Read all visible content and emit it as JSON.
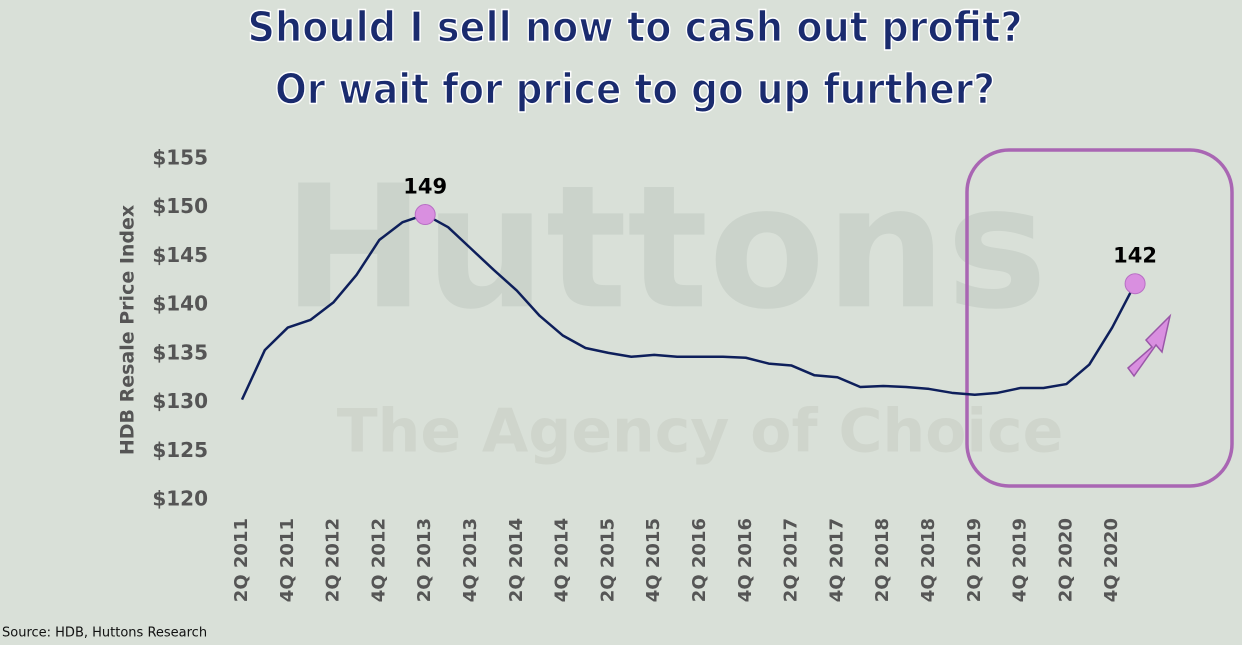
{
  "chart_data": {
    "type": "line",
    "title": "Should I sell now to cash out profit?",
    "subtitle": "Or wait for price to go up further?",
    "y_label": "HDB Resale Price Index",
    "source": "Source: HDB, Huttons Research",
    "watermark": [
      "Huttons",
      "The Agency of Choice"
    ],
    "categories": [
      "2Q 2011",
      null,
      "4Q 2011",
      null,
      "2Q 2012",
      null,
      "4Q 2012",
      null,
      "2Q 2013",
      null,
      "4Q 2013",
      null,
      "2Q 2014",
      null,
      "4Q 2014",
      null,
      "2Q 2015",
      null,
      "4Q 2015",
      null,
      "2Q 2016",
      null,
      "4Q 2016",
      null,
      "2Q 2017",
      null,
      "4Q 2017",
      null,
      "2Q 2018",
      null,
      "4Q 2018",
      null,
      "2Q 2019",
      null,
      "4Q 2019",
      null,
      "2Q 2020",
      null,
      "4Q 2020",
      null
    ],
    "values": [
      130.3,
      135.4,
      137.7,
      138.5,
      140.3,
      143.1,
      146.7,
      148.5,
      149.3,
      148.0,
      145.8,
      143.6,
      141.5,
      138.9,
      136.9,
      135.6,
      135.1,
      134.7,
      134.9,
      134.7,
      134.7,
      134.7,
      134.6,
      134.0,
      133.8,
      132.8,
      132.6,
      131.6,
      131.7,
      131.6,
      131.4,
      131.0,
      130.8,
      131.0,
      131.5,
      131.5,
      131.9,
      133.9,
      137.7,
      142.2
    ],
    "value_labels": [
      null,
      null,
      null,
      null,
      null,
      null,
      null,
      null,
      "149",
      null,
      null,
      null,
      null,
      null,
      null,
      null,
      null,
      null,
      null,
      null,
      null,
      null,
      null,
      null,
      null,
      null,
      null,
      null,
      null,
      null,
      null,
      null,
      null,
      null,
      null,
      null,
      null,
      null,
      null,
      "142"
    ],
    "color": "#0e1f5b",
    "marker_color": "#d98fe0",
    "ylim": [
      120,
      155
    ],
    "yticks": [
      {
        "value": 120,
        "label": "$120"
      },
      {
        "value": 125,
        "label": "$125"
      },
      {
        "value": 130,
        "label": "$130"
      },
      {
        "value": 135,
        "label": "$135"
      },
      {
        "value": 140,
        "label": "$140"
      },
      {
        "value": 145,
        "label": "$145"
      },
      {
        "value": 150,
        "label": "$150"
      },
      {
        "value": 155,
        "label": "$155"
      }
    ],
    "grid": false
  }
}
